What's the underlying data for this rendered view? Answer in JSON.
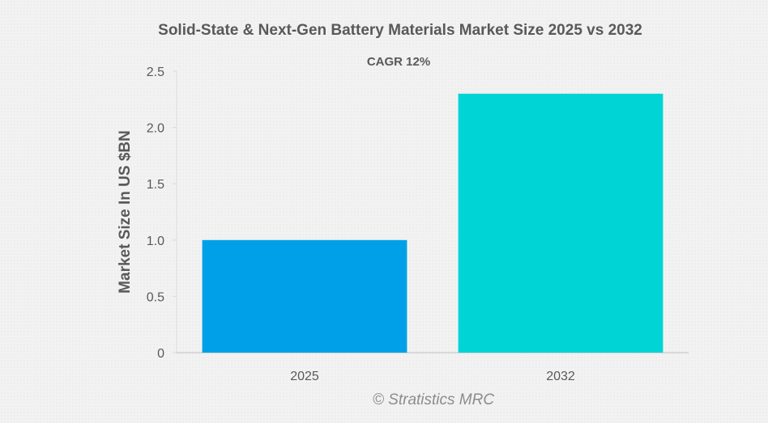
{
  "chart_data": {
    "type": "bar",
    "title": "Solid-State & Next-Gen Battery Materials Market Size 2025 vs 2032",
    "subtitle": "CAGR 12%",
    "xlabel": "",
    "ylabel": "Market Size In US $BN",
    "categories": [
      "2025",
      "2032"
    ],
    "values": [
      1.0,
      2.3
    ],
    "colors": [
      "#00a0e9",
      "#00d4d4"
    ],
    "ylim": [
      0,
      2.5
    ],
    "yticks": [
      0,
      0.5,
      1.0,
      1.5,
      2.0,
      2.5
    ],
    "ytick_labels": [
      "0",
      "0.5",
      "1.0",
      "1.5",
      "2.0",
      "2.5"
    ],
    "grid": false,
    "legend": "none"
  },
  "watermark": "© Stratistics MRC"
}
